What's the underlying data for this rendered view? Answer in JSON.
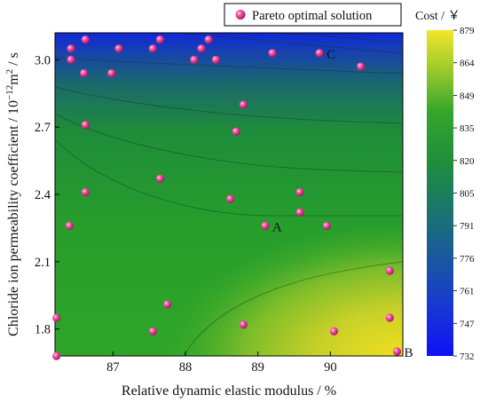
{
  "chart_data": {
    "type": "scatter",
    "subtype": "contour-heatmap with scatter overlay",
    "xlabel": "Relative dynamic elastic modulus / %",
    "ylabel_main": "Chloride ion permeability coefficient / 10",
    "ylabel_exp1": "−12",
    "ylabel_mid": "m",
    "ylabel_exp2": "2",
    "ylabel_tail": " / s",
    "xlim": [
      86.2,
      91.0
    ],
    "ylim": [
      1.68,
      3.12
    ],
    "x_ticks": [
      87,
      88,
      89,
      90
    ],
    "x_tick_labels": [
      "87",
      "88",
      "89",
      "90"
    ],
    "y_ticks": [
      1.8,
      2.1,
      2.4,
      2.7,
      3.0
    ],
    "y_tick_labels": [
      "1.8",
      "2.1",
      "2.4",
      "2.7",
      "3.0"
    ],
    "legend": {
      "label": "Pareto optimal solution",
      "placement": "top-right"
    },
    "colorbar": {
      "title": "Cost / ￥",
      "min": 732,
      "max": 879,
      "tick_labels": [
        "879",
        "864",
        "849",
        "835",
        "820",
        "805",
        "791",
        "776",
        "761",
        "747",
        "732"
      ]
    },
    "series": [
      {
        "name": "Pareto optimal solution",
        "points": [
          [
            86.42,
            3.05
          ],
          [
            86.62,
            3.09
          ],
          [
            87.08,
            3.05
          ],
          [
            87.55,
            3.05
          ],
          [
            87.65,
            3.09
          ],
          [
            88.22,
            3.05
          ],
          [
            88.32,
            3.09
          ],
          [
            86.42,
            3.0
          ],
          [
            88.12,
            3.0
          ],
          [
            88.42,
            3.0
          ],
          [
            89.2,
            3.03
          ],
          [
            89.85,
            3.03
          ],
          [
            90.42,
            2.97
          ],
          [
            86.6,
            2.94
          ],
          [
            86.98,
            2.94
          ],
          [
            88.8,
            2.8
          ],
          [
            86.62,
            2.71
          ],
          [
            88.7,
            2.68
          ],
          [
            87.65,
            2.47
          ],
          [
            86.62,
            2.41
          ],
          [
            89.58,
            2.41
          ],
          [
            88.62,
            2.38
          ],
          [
            89.58,
            2.32
          ],
          [
            86.4,
            2.26
          ],
          [
            89.1,
            2.26
          ],
          [
            89.95,
            2.26
          ],
          [
            90.82,
            2.06
          ],
          [
            87.75,
            1.91
          ],
          [
            86.22,
            1.85
          ],
          [
            90.82,
            1.85
          ],
          [
            87.55,
            1.79
          ],
          [
            88.8,
            1.82
          ],
          [
            90.05,
            1.79
          ],
          [
            86.22,
            1.68
          ],
          [
            90.92,
            1.7
          ]
        ]
      }
    ],
    "annotations": [
      {
        "label": "A",
        "x": 89.1,
        "y": 2.26
      },
      {
        "label": "B",
        "x": 90.92,
        "y": 1.7
      },
      {
        "label": "C",
        "x": 89.85,
        "y": 3.03
      }
    ]
  }
}
